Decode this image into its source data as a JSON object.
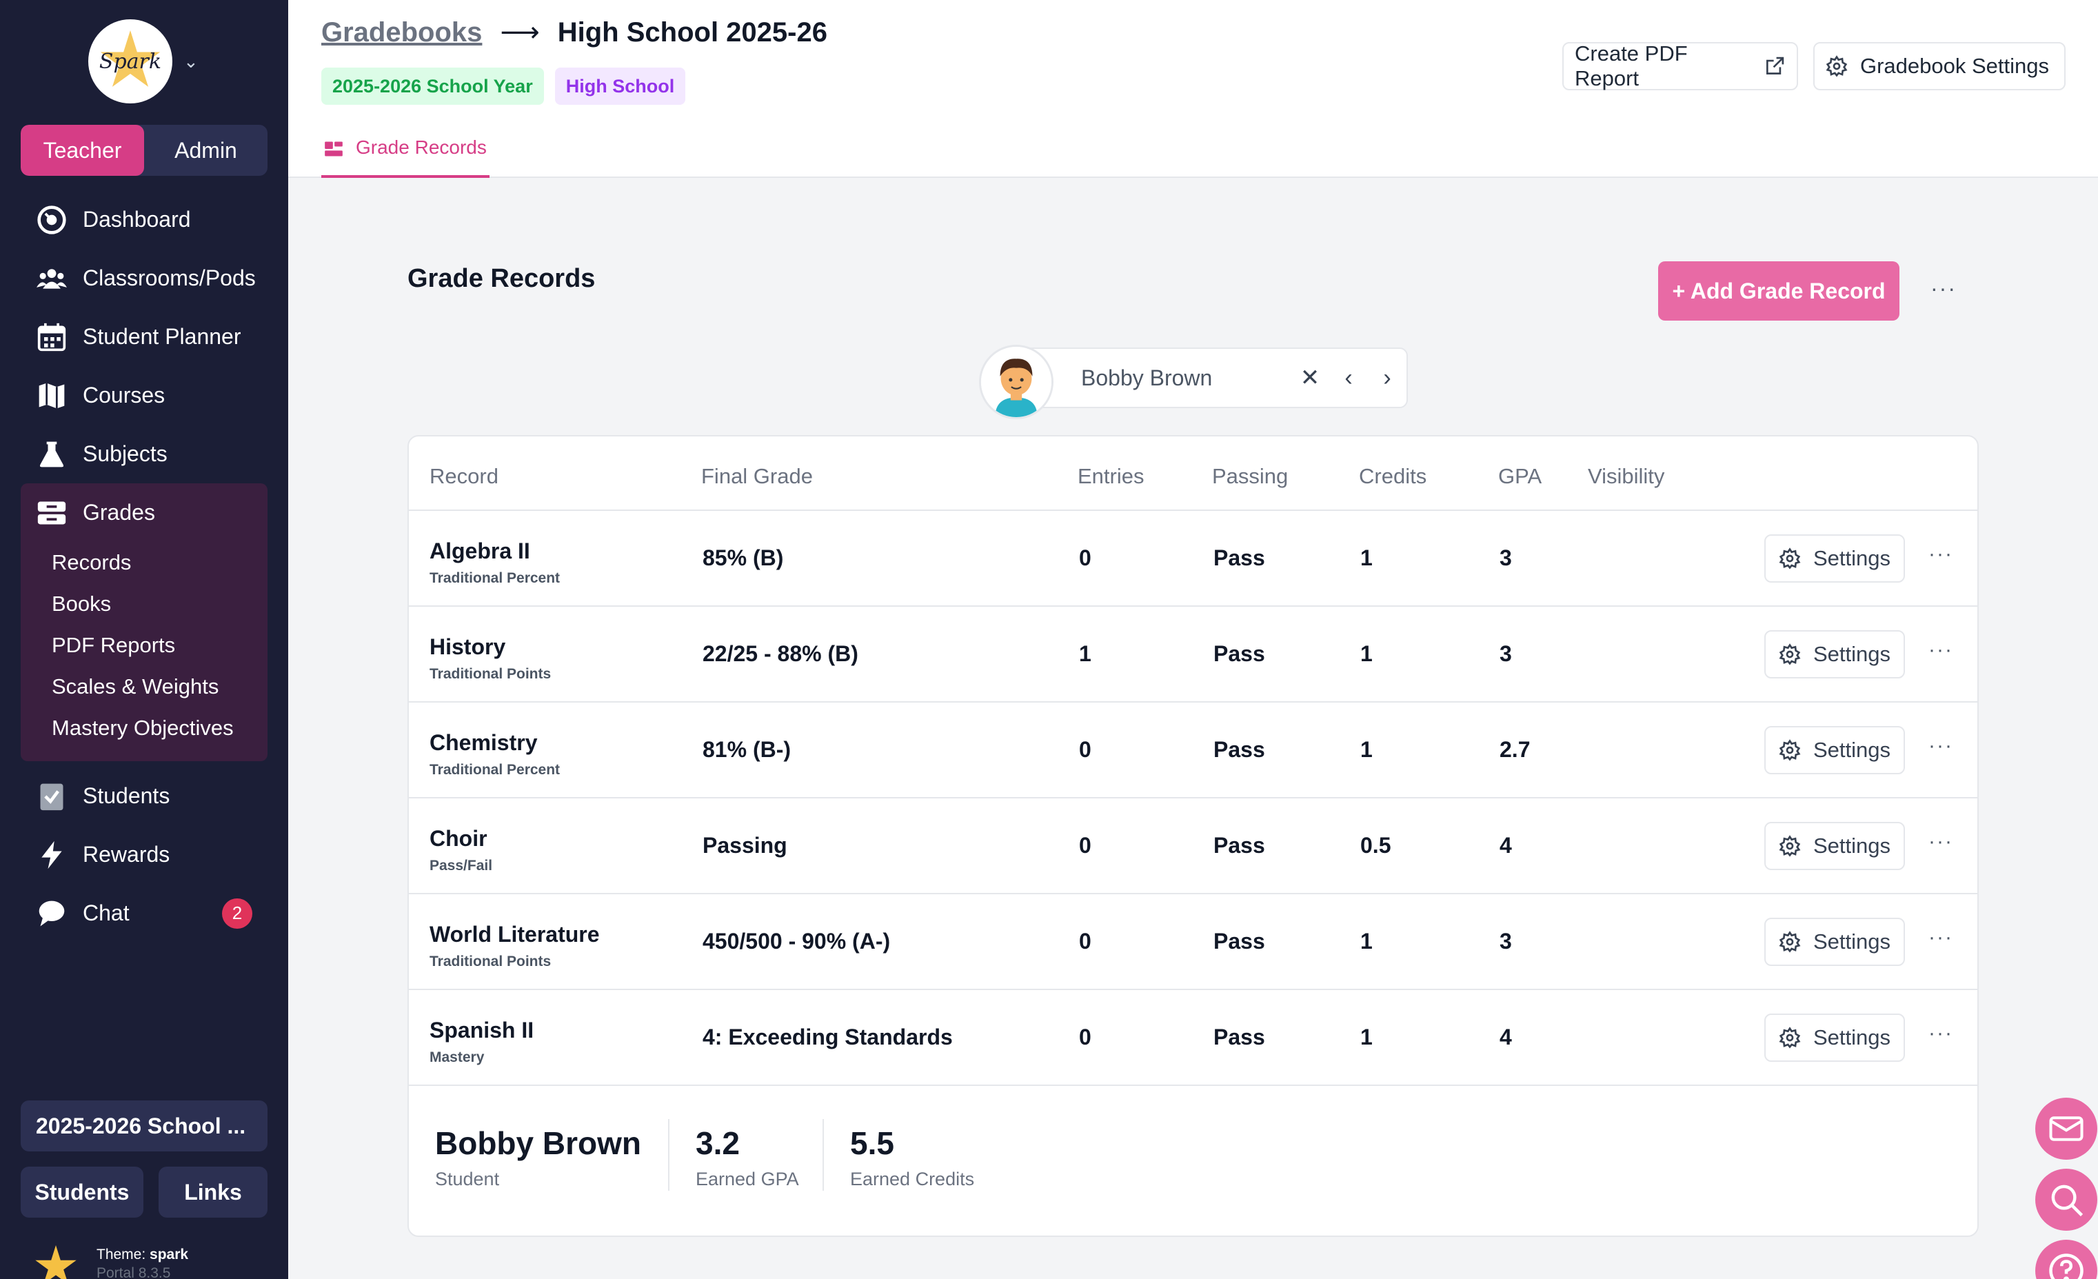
{
  "sidebar": {
    "logo_text": "Spark",
    "roles": [
      "Teacher",
      "Admin"
    ],
    "nav": [
      {
        "label": "Dashboard",
        "icon": "dashboard-icon"
      },
      {
        "label": "Classrooms/Pods",
        "icon": "people-icon"
      },
      {
        "label": "Student Planner",
        "icon": "calendar-icon"
      },
      {
        "label": "Courses",
        "icon": "map-icon"
      },
      {
        "label": "Subjects",
        "icon": "flask-icon"
      },
      {
        "label": "Grades",
        "icon": "grades-icon"
      }
    ],
    "grades_sub": [
      "Records",
      "Books",
      "PDF Reports",
      "Scales & Weights",
      "Mastery Objectives"
    ],
    "nav_after": [
      {
        "label": "Students",
        "icon": "clipboard-check-icon"
      },
      {
        "label": "Rewards",
        "icon": "bolt-icon"
      },
      {
        "label": "Chat",
        "icon": "chat-icon",
        "badge": "2"
      }
    ],
    "year_pill": "2025-2026 School ...",
    "bottom_buttons": [
      "Students",
      "Links"
    ],
    "theme_label": "Theme:",
    "theme_name": "spark",
    "version": "Portal 8.3.5"
  },
  "header": {
    "crumb_root": "Gradebooks",
    "crumb_arrow": "⟶",
    "crumb_current": "High School 2025-26",
    "badges": [
      "2025-2026 School Year",
      "High School"
    ],
    "pdf_button": "Create PDF Report",
    "settings_button": "Gradebook Settings",
    "tab": "Grade Records"
  },
  "main": {
    "title": "Grade Records",
    "add_button": "+ Add Grade Record",
    "more": "···",
    "student_name": "Bobby Brown",
    "columns": [
      "Record",
      "Final Grade",
      "Entries",
      "Passing",
      "Credits",
      "GPA",
      "Visibility"
    ],
    "rows": [
      {
        "name": "Algebra II",
        "type": "Traditional Percent",
        "grade": "85% (B)",
        "entries": "0",
        "passing": "Pass",
        "credits": "1",
        "gpa": "3"
      },
      {
        "name": "History",
        "type": "Traditional Points",
        "grade": "22/25 - 88% (B)",
        "entries": "1",
        "passing": "Pass",
        "credits": "1",
        "gpa": "3"
      },
      {
        "name": "Chemistry",
        "type": "Traditional Percent",
        "grade": "81% (B-)",
        "entries": "0",
        "passing": "Pass",
        "credits": "1",
        "gpa": "2.7"
      },
      {
        "name": "Choir",
        "type": "Pass/Fail",
        "grade": "Passing",
        "entries": "0",
        "passing": "Pass",
        "credits": "0.5",
        "gpa": "4"
      },
      {
        "name": "World Literature",
        "type": "Traditional Points",
        "grade": "450/500 - 90% (A-)",
        "entries": "0",
        "passing": "Pass",
        "credits": "1",
        "gpa": "3"
      },
      {
        "name": "Spanish II",
        "type": "Mastery",
        "grade": "4: Exceeding Standards",
        "entries": "0",
        "passing": "Pass",
        "credits": "1",
        "gpa": "4"
      }
    ],
    "settings_label": "Settings",
    "summary": {
      "name": "Bobby Brown",
      "role": "Student",
      "gpa": "3.2",
      "gpa_label": "Earned GPA",
      "credits": "5.5",
      "credits_label": "Earned Credits"
    }
  },
  "colors": {
    "accent": "#d63d86",
    "sidebar": "#1b1e36",
    "button_pink": "#e86aa5"
  }
}
